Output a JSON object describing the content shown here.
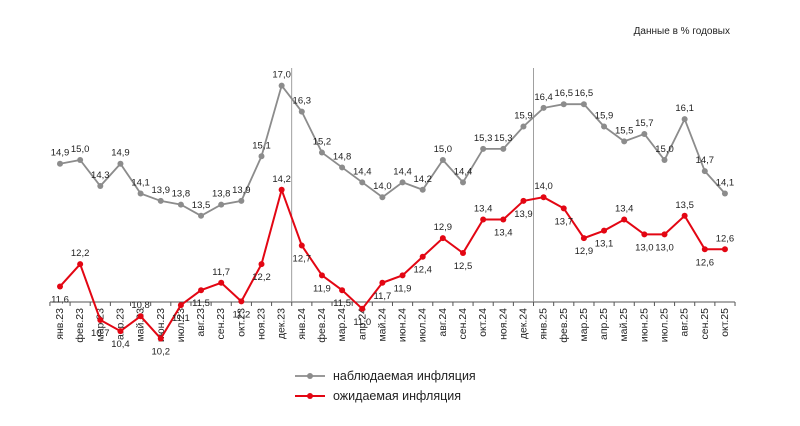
{
  "chart_data": {
    "type": "line",
    "units_note": "Данные в % годовых",
    "categories": [
      "янв.23",
      "фев.23",
      "мар.23",
      "апр.23",
      "май.23",
      "июн.23",
      "июл.23",
      "авг.23",
      "сен.23",
      "окт.23",
      "ноя.23",
      "дек.23",
      "янв.24",
      "фев.24",
      "мар.24",
      "апр.24",
      "май.24",
      "июн.24",
      "июл.24",
      "авг.24",
      "сен.24",
      "окт.24",
      "ноя.24",
      "дек.24",
      "янв.25",
      "фев.25",
      "мар.25",
      "апр.25",
      "май.25",
      "июн.25",
      "июл.25",
      "авг.25",
      "сен.25",
      "окт.25"
    ],
    "ylim": [
      9.5,
      17.5
    ],
    "grid": false,
    "legend_position": "bottom",
    "series": [
      {
        "name": "наблюдаемая инфляция",
        "color": "#8c8c8c",
        "values": [
          14.9,
          15.0,
          14.3,
          14.9,
          14.1,
          13.9,
          13.8,
          13.5,
          13.8,
          13.9,
          15.1,
          17.0,
          16.3,
          15.2,
          14.8,
          14.4,
          14.0,
          14.4,
          14.2,
          15.0,
          14.4,
          15.3,
          15.3,
          15.9,
          16.4,
          16.5,
          16.5,
          15.9,
          15.5,
          15.7,
          15.0,
          16.1,
          14.7,
          14.1
        ],
        "labels": [
          "14,9",
          "15,0",
          "14,3",
          "14,9",
          "14,1",
          "13,9",
          "13,8",
          "13,5",
          "13,8",
          "13,9",
          "15,1",
          "17,0",
          "16,3",
          "15,2",
          "14,8",
          "14,4",
          "14,0",
          "14,4",
          "14,2",
          "15,0",
          "14,4",
          "15,3",
          "15,3",
          "15,9",
          "16,4",
          "16,5",
          "16,5",
          "15,9",
          "15,5",
          "15,7",
          "15,0",
          "16,1",
          "14,7",
          "14,1"
        ]
      },
      {
        "name": "ожидаемая инфляция",
        "color": "#e30613",
        "values": [
          11.6,
          12.2,
          10.7,
          10.4,
          10.8,
          10.2,
          11.1,
          11.5,
          11.7,
          11.2,
          12.2,
          14.2,
          12.7,
          11.9,
          11.5,
          11.0,
          11.7,
          11.9,
          12.4,
          12.9,
          12.5,
          13.4,
          13.4,
          13.9,
          14.0,
          13.7,
          12.9,
          13.1,
          13.4,
          13.0,
          13.0,
          13.5,
          12.6,
          12.6
        ],
        "labels": [
          "11,6",
          "12,2",
          "10,7",
          "10,4",
          "10,8",
          "10,2",
          "11,1",
          "11,5",
          "11,7",
          "11,2",
          "12,2",
          "14,2",
          "12,7",
          "11,9",
          "11,5",
          "11,0",
          "11,7",
          "11,9",
          "12,4",
          "12,9",
          "12,5",
          "13,4",
          "13,4",
          "13,9",
          "14,0",
          "13,7",
          "12,9",
          "13,1",
          "13,4",
          "13,0",
          "13,0",
          "13,5",
          "12,6",
          "12,6"
        ]
      }
    ],
    "year_dividers_after": [
      "дек.23",
      "дек.24"
    ]
  }
}
